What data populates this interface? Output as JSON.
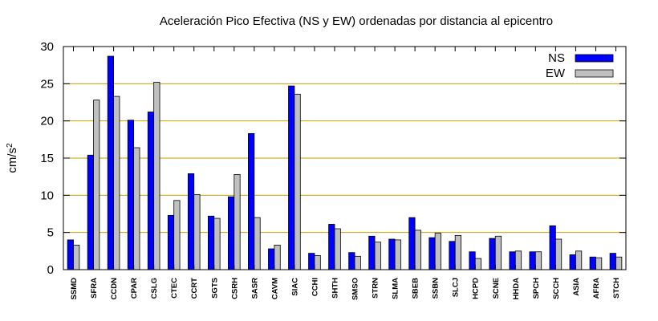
{
  "chart_data": {
    "type": "bar",
    "title": "Aceleración Pico Efectiva (NS y EW) ordenadas por distancia al epicentro",
    "xlabel": "",
    "ylabel": "cm/s",
    "ylabel_superscript": "2",
    "ylim": [
      0,
      30
    ],
    "yticks": [
      0,
      5,
      10,
      15,
      20,
      25,
      30
    ],
    "grid": "horizontal",
    "grid_color": "#c8a000",
    "legend_position": "top-right",
    "categories": [
      "SSMD",
      "SFRA",
      "CCDN",
      "CPAR",
      "CSLG",
      "CTEC",
      "CCRT",
      "SGTS",
      "CSRH",
      "SASR",
      "CAVM",
      "SIAC",
      "CCHI",
      "SHTH",
      "SMSO",
      "STRN",
      "SLMA",
      "SBEB",
      "SSBN",
      "SLCJ",
      "HCPD",
      "SCNE",
      "HHDA",
      "SPCH",
      "SCCH",
      "ASIA",
      "AFRA",
      "STCH"
    ],
    "series": [
      {
        "name": "NS",
        "color": "#0000ff",
        "values": [
          4.0,
          15.4,
          28.7,
          20.1,
          21.2,
          7.3,
          12.9,
          7.2,
          9.8,
          18.3,
          2.8,
          24.7,
          2.2,
          6.1,
          2.3,
          4.5,
          4.1,
          7.0,
          4.3,
          3.8,
          2.4,
          4.2,
          2.4,
          2.4,
          5.9,
          2.0,
          1.7,
          2.2
        ]
      },
      {
        "name": "EW",
        "color": "#c0c0c0",
        "values": [
          3.3,
          22.8,
          23.3,
          16.4,
          25.2,
          9.3,
          10.1,
          6.9,
          12.8,
          7.0,
          3.3,
          23.6,
          1.9,
          5.5,
          1.8,
          3.7,
          4.0,
          5.3,
          4.9,
          4.6,
          1.5,
          4.5,
          2.5,
          2.4,
          4.1,
          2.5,
          1.6,
          1.7
        ]
      }
    ]
  }
}
